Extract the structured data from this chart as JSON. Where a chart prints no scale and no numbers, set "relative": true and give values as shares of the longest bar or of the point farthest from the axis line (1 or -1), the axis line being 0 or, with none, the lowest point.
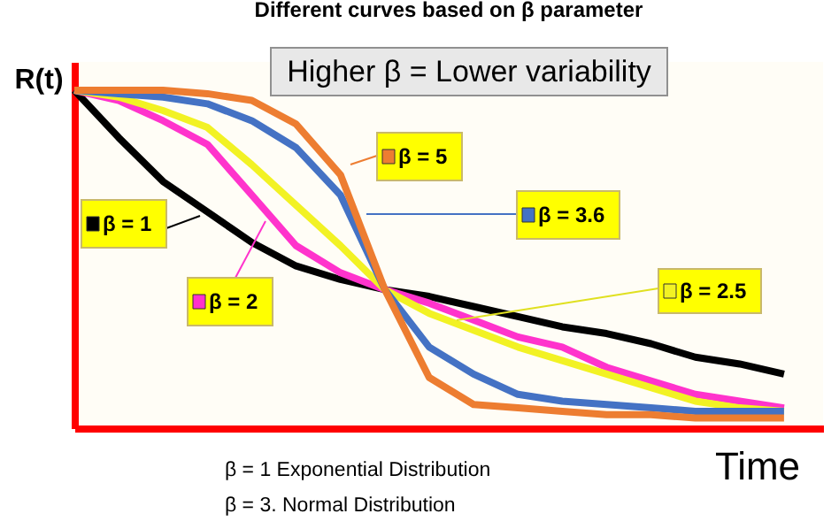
{
  "chart_data": {
    "type": "line",
    "title": "Different curves based on β parameter",
    "xlabel": "Time",
    "ylabel": "R(t)",
    "relative": true,
    "legend": "top right",
    "marker": "none",
    "line_style": "solid",
    "categories": [
      null,
      null,
      null,
      null,
      null,
      null,
      null,
      null,
      null,
      null,
      null,
      null,
      null,
      null,
      null,
      null,
      null
    ],
    "annotations": [
      "Higher β = Lower variability",
      "β = 1 Exponential Distribution",
      "β = 3. Normal Distribution"
    ],
    "series": [
      {
        "name": "β = 1",
        "color": "#000000",
        "values": [
          1,
          0.86,
          0.73,
          0.64,
          0.55,
          0.48,
          0.44,
          0.41,
          0.39,
          0.36,
          0.33,
          0.3,
          0.28,
          0.25,
          0.21,
          0.19,
          0.16
        ]
      },
      {
        "name": "β = 2",
        "color": "#ff33cc",
        "values": [
          1,
          0.97,
          0.91,
          0.84,
          0.69,
          0.54,
          0.46,
          0.41,
          0.37,
          0.32,
          0.27,
          0.24,
          0.18,
          0.14,
          0.1,
          0.08,
          0.06
        ]
      },
      {
        "name": "β = 2.5",
        "color": "#f2f224",
        "values": [
          1,
          0.98,
          0.94,
          0.89,
          0.78,
          0.66,
          0.54,
          0.41,
          0.34,
          0.29,
          0.24,
          0.2,
          0.16,
          0.12,
          0.08,
          0.06,
          0.05
        ]
      },
      {
        "name": "β = 3.6",
        "color": "#4472c4",
        "values": [
          1,
          0.99,
          0.98,
          0.96,
          0.91,
          0.83,
          0.69,
          0.41,
          0.24,
          0.16,
          0.1,
          0.08,
          0.07,
          0.06,
          0.05,
          0.05,
          0.05
        ]
      },
      {
        "name": "β = 5",
        "color": "#ed7d31",
        "values": [
          1,
          1,
          1,
          0.99,
          0.97,
          0.9,
          0.75,
          0.41,
          0.15,
          0.07,
          0.06,
          0.05,
          0.04,
          0.04,
          0.03,
          0.03,
          0.03
        ]
      }
    ]
  }
}
